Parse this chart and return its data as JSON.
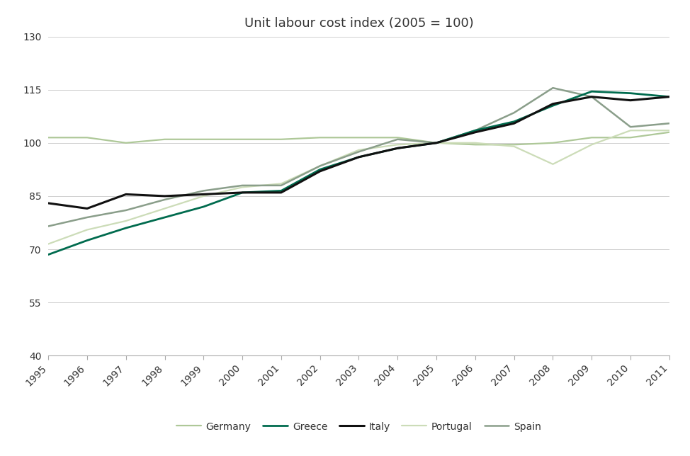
{
  "title": "Unit labour cost index (2005 = 100)",
  "years": [
    1995,
    1996,
    1997,
    1998,
    1999,
    2000,
    2001,
    2002,
    2003,
    2004,
    2005,
    2006,
    2007,
    2008,
    2009,
    2010,
    2011
  ],
  "series": {
    "Germany": [
      101.5,
      101.5,
      100.0,
      101.0,
      101.0,
      101.0,
      101.0,
      101.5,
      101.5,
      101.5,
      100.0,
      99.5,
      99.5,
      100.0,
      101.5,
      101.5,
      103.0
    ],
    "Greece": [
      68.5,
      72.5,
      76.0,
      79.0,
      82.0,
      86.0,
      86.5,
      92.5,
      96.0,
      98.5,
      100.0,
      103.5,
      106.0,
      110.5,
      114.5,
      114.0,
      113.0
    ],
    "Italy": [
      83.0,
      81.5,
      85.5,
      85.0,
      85.5,
      86.0,
      86.0,
      92.0,
      96.0,
      98.5,
      100.0,
      103.0,
      105.5,
      111.0,
      113.0,
      112.0,
      113.0
    ],
    "Portugal": [
      71.5,
      75.5,
      78.0,
      81.5,
      85.0,
      87.5,
      88.5,
      93.5,
      98.0,
      99.5,
      100.0,
      100.0,
      99.0,
      94.0,
      99.5,
      103.5,
      103.5
    ],
    "Spain": [
      76.5,
      79.0,
      81.0,
      84.0,
      86.5,
      88.0,
      88.0,
      93.5,
      97.5,
      101.0,
      100.0,
      103.5,
      108.5,
      115.5,
      113.0,
      104.5,
      105.5
    ]
  },
  "colors": {
    "Germany": "#aec898",
    "Greece": "#006b4e",
    "Italy": "#111111",
    "Portugal": "#ccdcb8",
    "Spain": "#8a9e8a"
  },
  "linewidths": {
    "Germany": 1.6,
    "Greece": 2.0,
    "Italy": 2.2,
    "Portugal": 1.6,
    "Spain": 1.8
  },
  "ylim": [
    40,
    130
  ],
  "yticks": [
    40,
    55,
    70,
    85,
    100,
    115,
    130
  ],
  "background_color": "#ffffff",
  "grid_color": "#d0d0d0",
  "title_fontsize": 13,
  "tick_fontsize": 10,
  "legend_fontsize": 10
}
